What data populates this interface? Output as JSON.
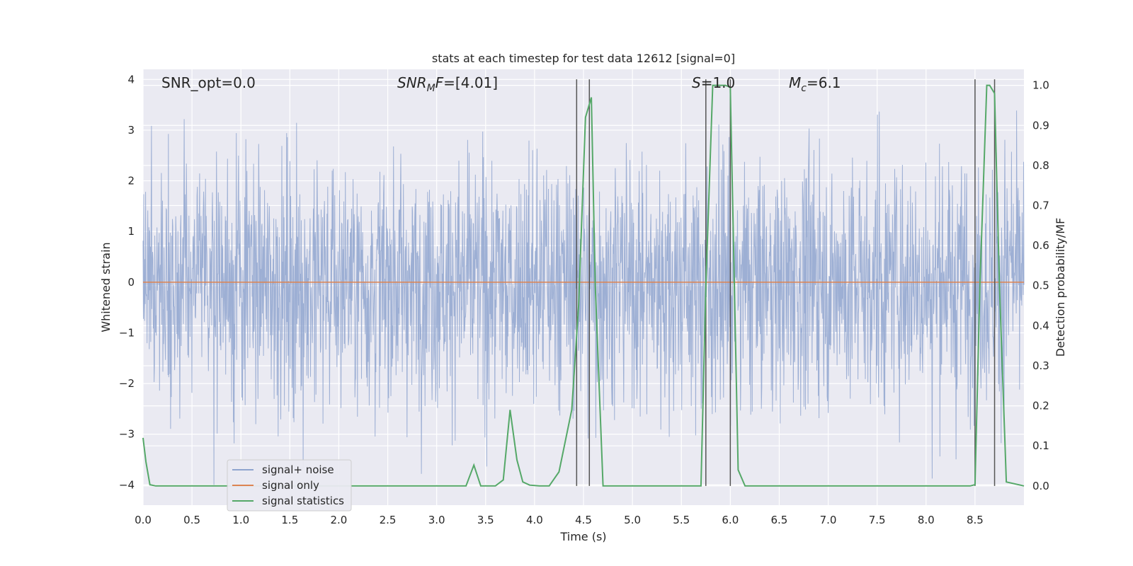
{
  "chart_data": {
    "type": "line",
    "title": "stats at each timestep for test data 12612 [signal=0]",
    "xlabel": "Time (s)",
    "ylabel": "Whitened strain",
    "ylabel_right": "Detection probability/MF",
    "xlim": [
      0.0,
      9.0
    ],
    "ylim": [
      -4.4,
      4.2
    ],
    "ylim_right": [
      -0.048,
      1.04
    ],
    "x_ticks": [
      "0.0",
      "0.5",
      "1.0",
      "1.5",
      "2.0",
      "2.5",
      "3.0",
      "3.5",
      "4.0",
      "4.5",
      "5.0",
      "5.5",
      "6.0",
      "6.5",
      "7.0",
      "7.5",
      "8.0",
      "8.5"
    ],
    "y_ticks_left": [
      "−4",
      "−3",
      "−2",
      "−1",
      "0",
      "1",
      "2",
      "3",
      "4"
    ],
    "y_ticks_right": [
      "0.0",
      "0.1",
      "0.2",
      "0.3",
      "0.4",
      "0.5",
      "0.6",
      "0.7",
      "0.8",
      "0.9",
      "1.0"
    ],
    "grid": true,
    "legend_position": "lower-left",
    "annotations": {
      "snr_opt": "SNR_opt=0.0",
      "snr_mf": "=[4.01]",
      "snr_mf_symbol": "SNR",
      "snr_mf_sub": "M",
      "snr_mf_suffix": "F",
      "s_label": "S",
      "s_value": "=1.0",
      "mc_symbol": "M",
      "mc_sub": "c",
      "mc_value": "=6.1"
    },
    "series": [
      {
        "name": "signal+ noise",
        "color": "#8fa4cf",
        "kind": "noise",
        "envelope": {
          "typical_abs": 2.0,
          "peak_max": 3.8,
          "peak_min": -4.0
        }
      },
      {
        "name": "signal only",
        "color": "#dd8452",
        "x": [
          0.0,
          9.0
        ],
        "y": [
          0.0,
          0.0
        ]
      },
      {
        "name": "signal statistics",
        "color": "#55a868",
        "axis": "right",
        "x": [
          0.0,
          0.03,
          0.07,
          0.13,
          0.2,
          0.5,
          1.0,
          1.5,
          2.0,
          2.5,
          3.0,
          3.3,
          3.38,
          3.45,
          3.52,
          3.6,
          3.68,
          3.75,
          3.82,
          3.88,
          3.95,
          4.05,
          4.15,
          4.25,
          4.38,
          4.45,
          4.52,
          4.58,
          4.62,
          4.7,
          5.0,
          5.5,
          5.7,
          5.75,
          5.82,
          5.9,
          5.95,
          6.0,
          6.08,
          6.15,
          6.5,
          7.0,
          7.5,
          8.0,
          8.45,
          8.5,
          8.55,
          8.62,
          8.65,
          8.7,
          8.75,
          8.82,
          9.0
        ],
        "y": [
          0.12,
          0.06,
          0.003,
          0.0,
          0.0,
          0.0,
          0.0,
          0.0,
          0.0,
          0.0,
          0.0,
          0.0,
          0.052,
          0.0,
          0.0,
          0.0,
          0.015,
          0.19,
          0.065,
          0.01,
          0.002,
          0.0,
          0.0,
          0.035,
          0.19,
          0.45,
          0.92,
          0.97,
          0.5,
          0.0,
          0.0,
          0.0,
          0.0,
          0.5,
          1.0,
          1.0,
          1.0,
          0.995,
          0.04,
          0.0,
          0.0,
          0.0,
          0.0,
          0.0,
          0.0,
          0.003,
          0.5,
          1.0,
          1.0,
          0.98,
          0.5,
          0.01,
          0.0
        ]
      }
    ],
    "vertical_markers": {
      "color": "#555555",
      "x": [
        4.43,
        4.56,
        5.75,
        6.0,
        8.5,
        8.7
      ]
    }
  }
}
